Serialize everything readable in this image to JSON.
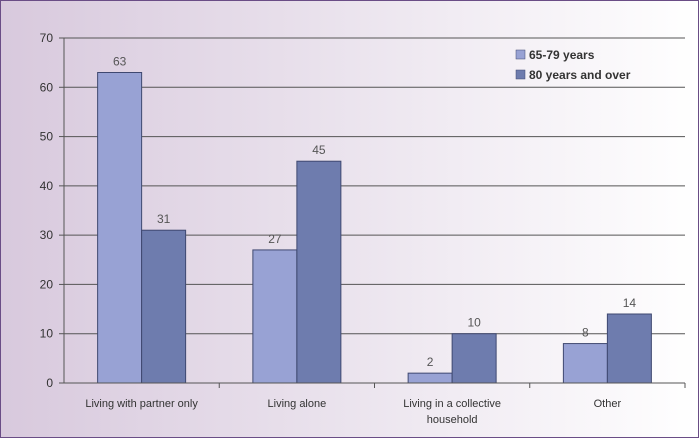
{
  "chart_data": {
    "type": "bar",
    "categories": [
      [
        "Living with partner only"
      ],
      [
        "Living alone"
      ],
      [
        "Living in a collective",
        "household"
      ],
      [
        "Other"
      ]
    ],
    "series": [
      {
        "name": "65-79 years",
        "values": [
          63,
          27,
          2,
          8
        ],
        "color": "#98a2d4"
      },
      {
        "name": "80 years and over",
        "values": [
          31,
          45,
          10,
          14
        ],
        "color": "#6e7cae"
      }
    ],
    "yticks": [
      0,
      10,
      20,
      30,
      40,
      50,
      60,
      70
    ],
    "ylim": [
      0,
      70
    ],
    "grid": true,
    "legend_position": "top-right",
    "data_labels": true
  }
}
